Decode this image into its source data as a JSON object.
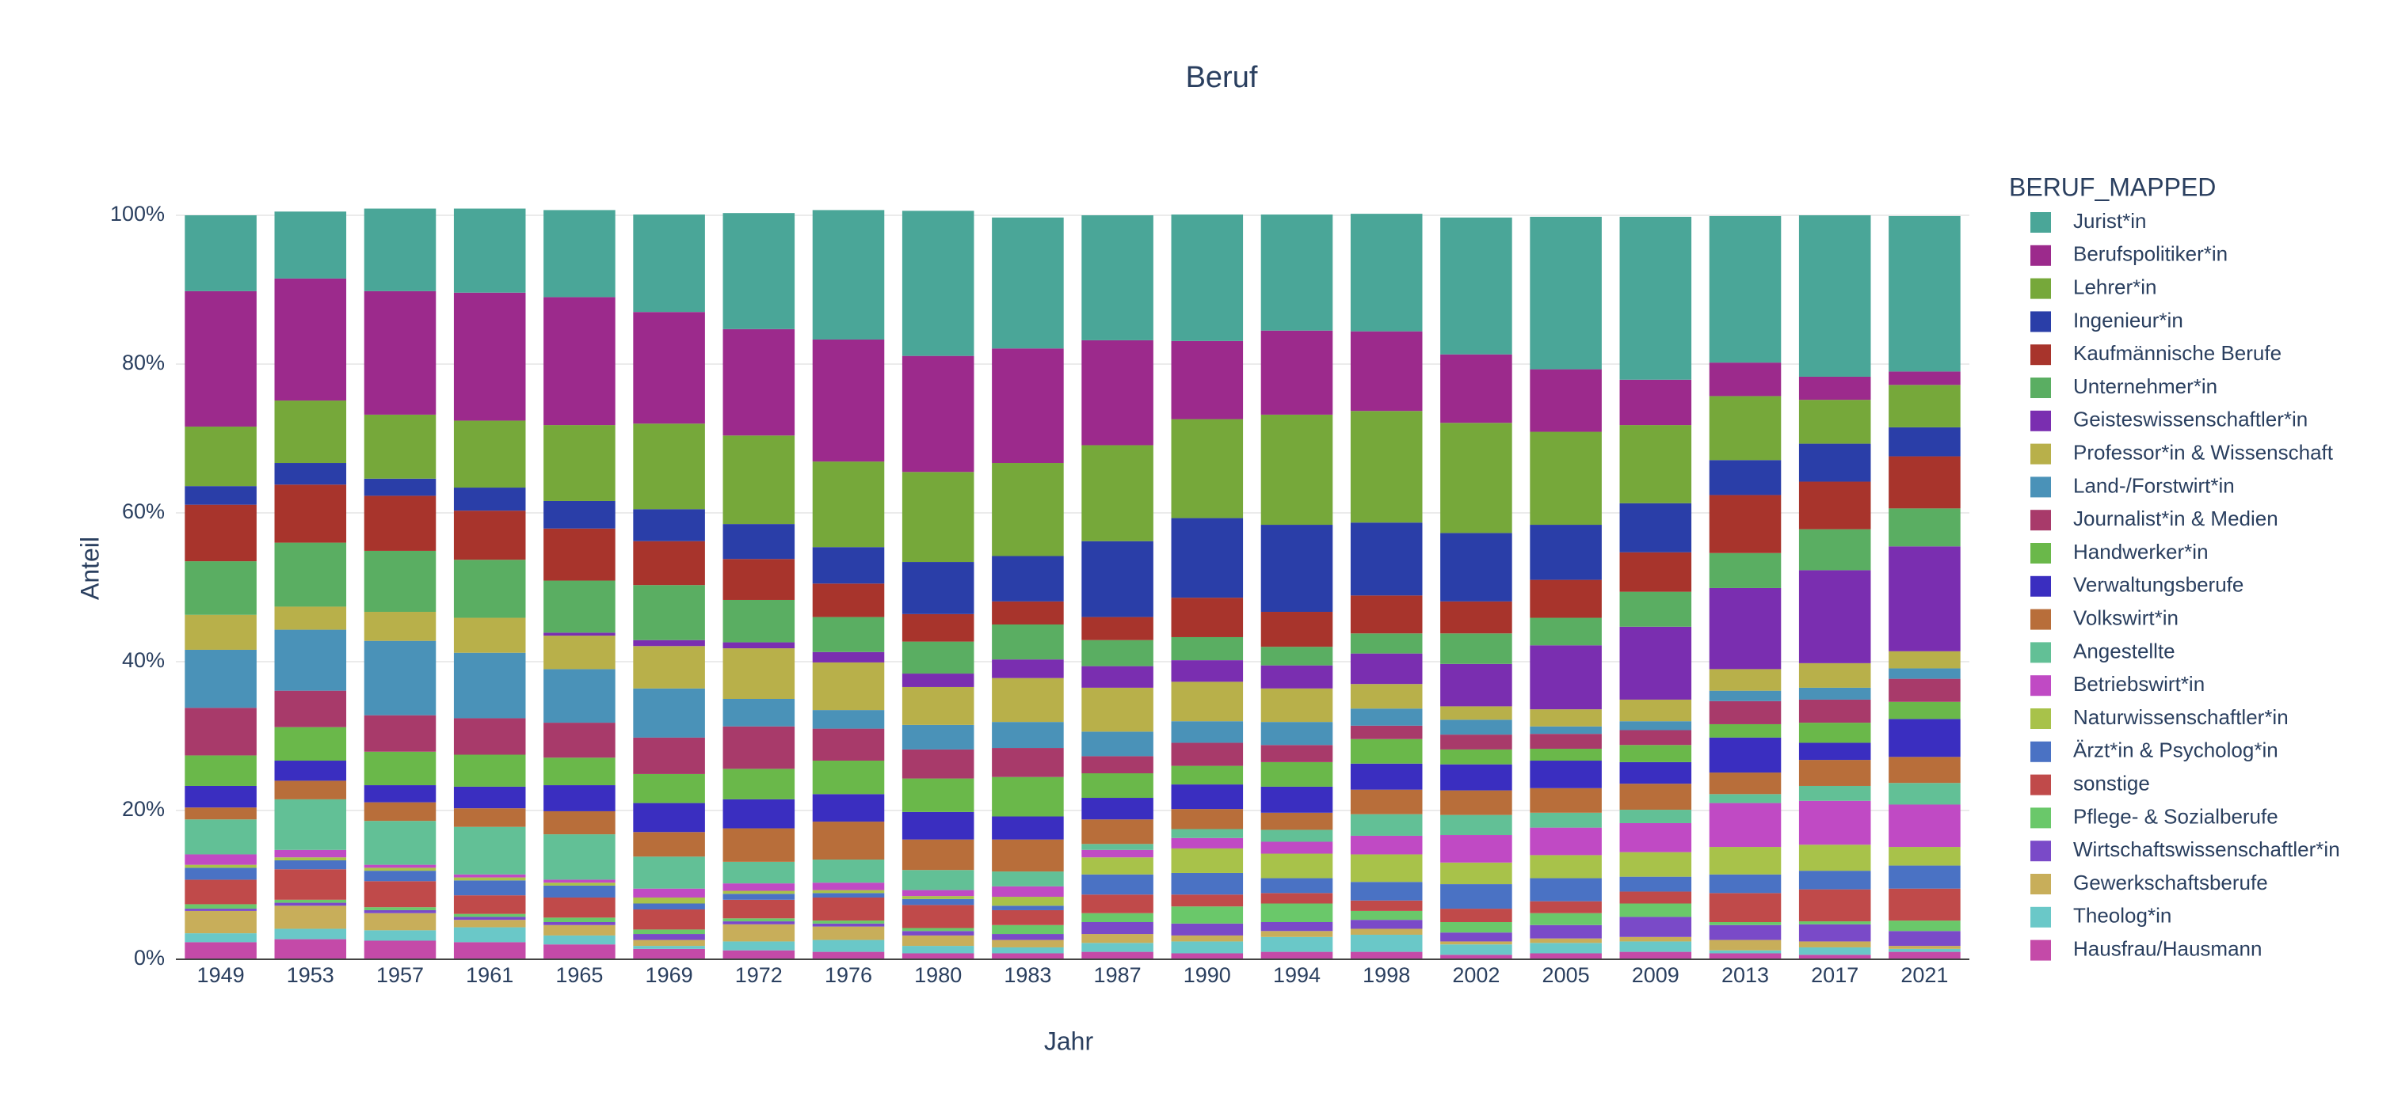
{
  "chart_data": {
    "type": "stacked_bar",
    "title": "Beruf",
    "x_label": "Jahr",
    "y_label": "Anteil",
    "legend_title": "BERUF_MAPPED",
    "legend_position": "right",
    "grid": true,
    "categories": [
      "1949",
      "1953",
      "1957",
      "1961",
      "1965",
      "1969",
      "1972",
      "1976",
      "1980",
      "1983",
      "1987",
      "1990",
      "1994",
      "1998",
      "2002",
      "2005",
      "2009",
      "2013",
      "2017",
      "2021"
    ],
    "ylim": [
      0,
      100
    ],
    "yticks": [
      {
        "value": 0,
        "label": "0%"
      },
      {
        "value": 20,
        "label": "20%"
      },
      {
        "value": 40,
        "label": "40%"
      },
      {
        "value": 60,
        "label": "60%"
      },
      {
        "value": 80,
        "label": "80%"
      },
      {
        "value": 100,
        "label": "100%"
      }
    ],
    "series": [
      {
        "name": "Jurist*in",
        "color": "#4aa698",
        "values": [
          10.2,
          9,
          11.1,
          11.3,
          11.7,
          13.1,
          15.6,
          17.4,
          19.5,
          17.6,
          16.8,
          17,
          15.6,
          15.8,
          18.4,
          20.5,
          21.9,
          19.7,
          21.7,
          20.9
        ]
      },
      {
        "name": "Berufspolitiker*in",
        "color": "#9c2a8c",
        "values": [
          18.2,
          16.4,
          16.6,
          17.2,
          17.2,
          15,
          14.3,
          16.4,
          15.6,
          15.4,
          14.1,
          10.5,
          11.3,
          10.7,
          9.2,
          8.4,
          6.1,
          4.5,
          3.1,
          1.8
        ]
      },
      {
        "name": "Lehrer*in",
        "color": "#76a83a",
        "values": [
          8,
          8.4,
          8.6,
          9,
          10.2,
          11.5,
          11.9,
          11.5,
          12.1,
          12.5,
          12.9,
          13.3,
          14.8,
          15,
          14.8,
          12.5,
          10.5,
          8.6,
          5.9,
          5.7
        ]
      },
      {
        "name": "Ingenieur*in",
        "color": "#2a3ea8",
        "values": [
          2.5,
          2.9,
          2.3,
          3.1,
          3.7,
          4.3,
          4.7,
          4.9,
          7,
          6.1,
          10.2,
          10.7,
          11.7,
          9.8,
          9.2,
          7.4,
          6.6,
          4.7,
          5.1,
          3.9
        ]
      },
      {
        "name": "Kaufmännische Berufe",
        "color": "#a8342c",
        "values": [
          7.6,
          7.8,
          7.4,
          6.6,
          7,
          5.9,
          5.5,
          4.5,
          3.7,
          3.1,
          3.1,
          5.3,
          4.7,
          5.1,
          4.3,
          5.1,
          5.3,
          7.8,
          6.4,
          7
        ]
      },
      {
        "name": "Unternehmer*in",
        "color": "#5aae62",
        "values": [
          7.2,
          8.6,
          8.2,
          7.8,
          7,
          7.4,
          5.7,
          4.7,
          4.3,
          4.7,
          3.5,
          3.1,
          2.5,
          2.7,
          4.1,
          3.7,
          4.7,
          4.7,
          5.5,
          5.1
        ]
      },
      {
        "name": "Geisteswissenschaftler*in",
        "color": "#7a2eb0",
        "values": [
          0,
          0,
          0,
          0,
          0.4,
          0.8,
          0.8,
          1.4,
          1.8,
          2.5,
          2.9,
          2.9,
          3.1,
          4.1,
          5.7,
          8.6,
          9.8,
          10.9,
          12.5,
          14.1
        ]
      },
      {
        "name": "Professor*in & Wissenschaft",
        "color": "#b8b04a",
        "values": [
          4.7,
          3.1,
          3.9,
          4.7,
          4.5,
          5.7,
          6.8,
          6.4,
          5.1,
          5.9,
          5.9,
          5.3,
          4.5,
          3.3,
          1.8,
          2.3,
          2.9,
          2.9,
          3.3,
          2.3
        ]
      },
      {
        "name": "Land-/Forstwirt*in",
        "color": "#4a92b8",
        "values": [
          7.8,
          8.2,
          10,
          8.8,
          7.2,
          6.6,
          3.7,
          2.5,
          3.3,
          3.5,
          3.3,
          2.9,
          3.1,
          2.3,
          2,
          1,
          1.2,
          1.4,
          1.6,
          1.4
        ]
      },
      {
        "name": "Journalist*in & Medien",
        "color": "#a83a6a",
        "values": [
          6.4,
          4.9,
          4.9,
          4.9,
          4.7,
          4.9,
          5.7,
          4.3,
          3.9,
          3.9,
          2.3,
          3.1,
          2.3,
          1.8,
          2,
          2,
          2,
          3.1,
          3.1,
          3.1
        ]
      },
      {
        "name": "Handwerker*in",
        "color": "#6ab84a",
        "values": [
          4.1,
          4.5,
          4.5,
          4.3,
          3.7,
          3.9,
          4.1,
          4.5,
          4.5,
          5.3,
          3.3,
          2.5,
          3.3,
          3.3,
          2,
          1.6,
          2.3,
          1.8,
          2.7,
          2.3
        ]
      },
      {
        "name": "Verwaltungsberufe",
        "color": "#3a2ec0",
        "values": [
          2.9,
          2.7,
          2.3,
          2.9,
          3.5,
          3.9,
          3.9,
          3.7,
          3.7,
          3.1,
          2.9,
          3.3,
          3.5,
          3.5,
          3.5,
          3.7,
          2.9,
          4.7,
          2.3,
          5.1
        ]
      },
      {
        "name": "Volkswirt*in",
        "color": "#b86e3a",
        "values": [
          1.6,
          2.5,
          2.5,
          2.5,
          3.1,
          3.3,
          4.5,
          5.1,
          4.1,
          4.3,
          3.3,
          2.7,
          2.3,
          3.3,
          3.3,
          3.3,
          3.5,
          2.9,
          3.5,
          3.5
        ]
      },
      {
        "name": "Angestellte",
        "color": "#62c096",
        "values": [
          4.7,
          6.8,
          5.9,
          6.4,
          6.1,
          4.3,
          2.9,
          3.1,
          2.7,
          2,
          0.8,
          1.2,
          1.6,
          2.9,
          2.7,
          2,
          1.8,
          1.2,
          2,
          2.9
        ]
      },
      {
        "name": "Betriebswirt*in",
        "color": "#c04ac4",
        "values": [
          1.4,
          1,
          0.4,
          0.4,
          0.4,
          1.2,
          1,
          1,
          0.8,
          1.4,
          1,
          1.4,
          1.6,
          2.5,
          3.7,
          3.7,
          3.9,
          5.9,
          5.9,
          5.7
        ]
      },
      {
        "name": "Naturwissenschaftler*in",
        "color": "#a8c24a",
        "values": [
          0.4,
          0.4,
          0.4,
          0.4,
          0.4,
          0.8,
          0.4,
          0.4,
          0.4,
          1.2,
          2.3,
          3.3,
          3.3,
          3.7,
          2.9,
          3.1,
          3.3,
          3.7,
          3.5,
          2.5
        ]
      },
      {
        "name": "Ärzt*in & Psycholog*in",
        "color": "#4a72c4",
        "values": [
          1.6,
          1.2,
          1.4,
          2,
          1.6,
          0.8,
          0.8,
          0.6,
          0.8,
          0.6,
          2.7,
          2.9,
          2,
          2.5,
          3.3,
          3.1,
          2,
          2.5,
          2.5,
          3.1
        ]
      },
      {
        "name": "sonstige",
        "color": "#c04a4a",
        "values": [
          3.3,
          4.1,
          3.5,
          2.5,
          2.7,
          2.7,
          2.5,
          3.1,
          3.1,
          2,
          2.5,
          1.6,
          1.4,
          1.4,
          1.8,
          1.6,
          1.6,
          3.9,
          4.3,
          4.3
        ]
      },
      {
        "name": "Pflege- & Sozialberufe",
        "color": "#6ac86a",
        "values": [
          0.6,
          0.4,
          0.4,
          0.4,
          0.6,
          0.6,
          0.4,
          0.4,
          0.4,
          1.2,
          1.2,
          2.3,
          2.5,
          1.2,
          1.4,
          1.6,
          1.8,
          0.4,
          0.4,
          1.4
        ]
      },
      {
        "name": "Wirtschaftswissenschaftler*in",
        "color": "#7a4ac8",
        "values": [
          0.3,
          0.4,
          0.4,
          0.4,
          0.4,
          0.8,
          0.4,
          0.4,
          0.6,
          0.8,
          1.6,
          1.6,
          1.2,
          1.2,
          1.2,
          1.8,
          2.7,
          2,
          2.3,
          2
        ]
      },
      {
        "name": "Gewerkschaftsberufe",
        "color": "#c8ae5a",
        "values": [
          3,
          3.1,
          2.3,
          1,
          1.4,
          0.8,
          2.3,
          1.8,
          1.4,
          1,
          1.2,
          0.8,
          0.8,
          0.8,
          0.4,
          0.6,
          0.6,
          1.4,
          0.8,
          0.4
        ]
      },
      {
        "name": "Theolog*in",
        "color": "#6ac8c8",
        "values": [
          1.2,
          1.4,
          1.4,
          2,
          1.2,
          0.4,
          1.2,
          1.6,
          1,
          0.8,
          1.2,
          1.6,
          2,
          2.3,
          1.4,
          1.4,
          1.4,
          0.4,
          1,
          0.4
        ]
      },
      {
        "name": "Hausfrau/Hausmann",
        "color": "#c44aa8",
        "values": [
          2.3,
          2.7,
          2.5,
          2.3,
          2,
          1.4,
          1.2,
          1,
          0.8,
          0.8,
          1,
          0.8,
          1,
          1,
          0.6,
          0.8,
          1,
          0.8,
          0.6,
          1
        ]
      }
    ]
  }
}
